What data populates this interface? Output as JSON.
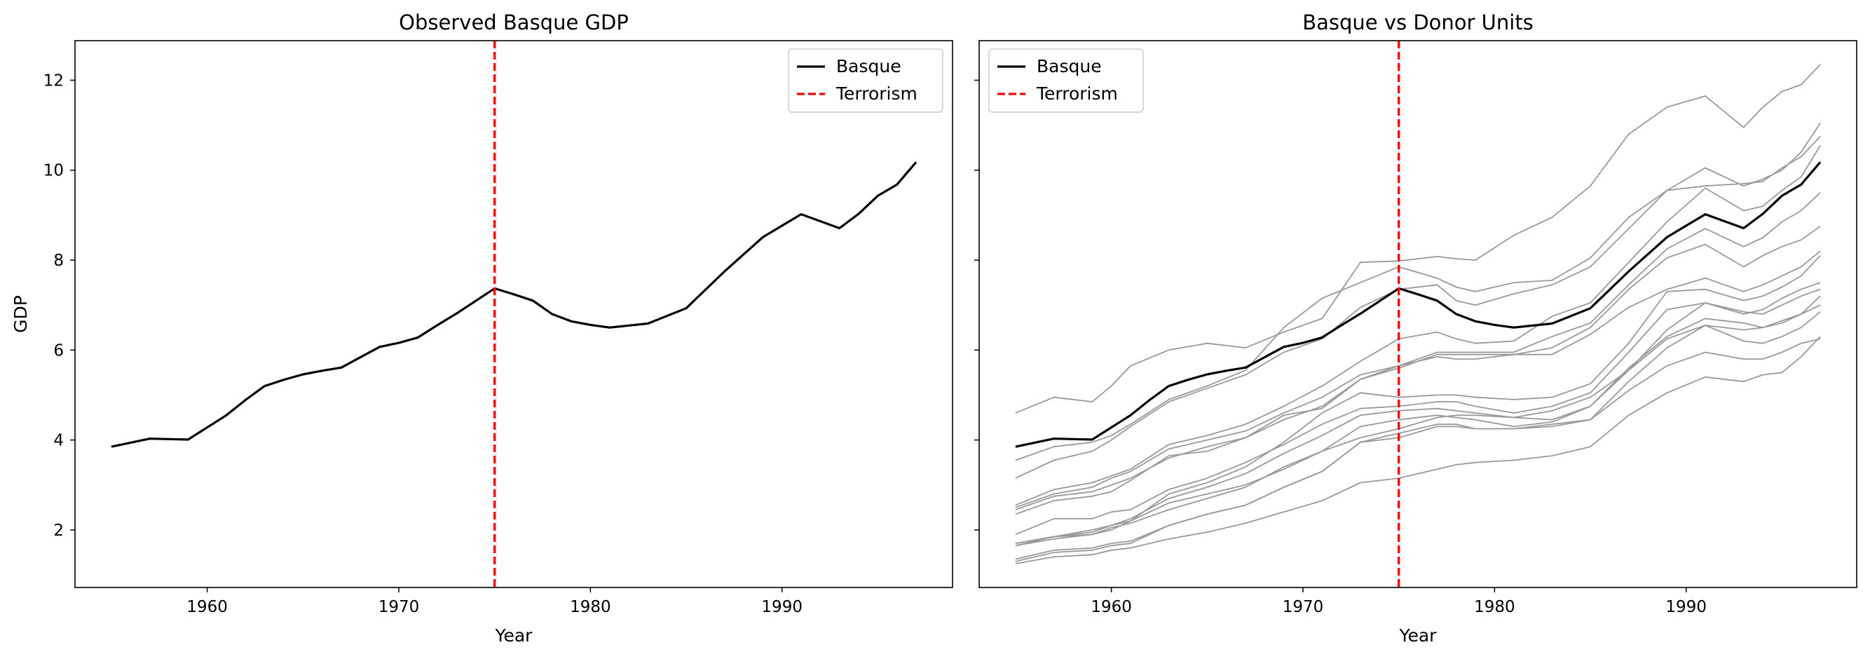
{
  "chart_data": [
    {
      "type": "line",
      "title": "Observed Basque GDP",
      "xlabel": "Year",
      "ylabel": "GDP",
      "xlim": [
        1953.1,
        1998.9
      ],
      "ylim": [
        0.72,
        12.88
      ],
      "xticks": [
        1960,
        1970,
        1980,
        1990
      ],
      "yticks": [
        2,
        4,
        6,
        8,
        10,
        12
      ],
      "x_tick_labels": [
        "1960",
        "1970",
        "1980",
        "1990"
      ],
      "y_tick_labels": [
        "2",
        "4",
        "6",
        "8",
        "10",
        "12"
      ],
      "vline": {
        "x": 1975,
        "label": "Terrorism",
        "color": "#ff0000",
        "style": "dashed"
      },
      "legend": {
        "placement": "upper right",
        "entries": [
          "Basque",
          "Terrorism"
        ]
      },
      "grid": false,
      "series": [
        {
          "name": "Basque",
          "color": "#000000",
          "x": [
            1955,
            1957,
            1959,
            1961,
            1962,
            1963,
            1964,
            1965,
            1966,
            1967,
            1969,
            1970,
            1971,
            1972,
            1973,
            1975,
            1976,
            1977,
            1978,
            1979,
            1980,
            1981,
            1983,
            1985,
            1987,
            1989,
            1991,
            1993,
            1994,
            1995,
            1996,
            1997
          ],
          "y": [
            3.85,
            4.03,
            4.01,
            4.55,
            4.89,
            5.2,
            5.34,
            5.46,
            5.54,
            5.61,
            6.07,
            6.16,
            6.28,
            6.55,
            6.81,
            7.37,
            7.24,
            7.1,
            6.8,
            6.64,
            6.56,
            6.5,
            6.59,
            6.93,
            7.75,
            8.51,
            9.02,
            8.71,
            9.03,
            9.43,
            9.68,
            10.18
          ]
        }
      ]
    },
    {
      "type": "line",
      "title": "Basque vs Donor Units",
      "xlabel": "Year",
      "ylabel": "",
      "xlim": [
        1953.1,
        1998.9
      ],
      "ylim": [
        0.72,
        12.88
      ],
      "xticks": [
        1960,
        1970,
        1980,
        1990
      ],
      "x_tick_labels": [
        "1960",
        "1970",
        "1980",
        "1990"
      ],
      "sharey": true,
      "vline": {
        "x": 1975,
        "label": "Terrorism",
        "color": "#ff0000",
        "style": "dashed"
      },
      "legend": {
        "placement": "upper left",
        "entries": [
          "Basque",
          "Terrorism"
        ]
      },
      "grid": false,
      "donor_color": "#999999",
      "x": [
        1955,
        1957,
        1959,
        1960,
        1961,
        1963,
        1965,
        1967,
        1969,
        1971,
        1973,
        1975,
        1977,
        1978,
        1979,
        1981,
        1983,
        1985,
        1987,
        1989,
        1991,
        1993,
        1994,
        1995,
        1996,
        1997
      ],
      "series": [
        {
          "name": "Basque",
          "color": "#000000",
          "x": [
            1955,
            1957,
            1959,
            1961,
            1962,
            1963,
            1964,
            1965,
            1966,
            1967,
            1969,
            1970,
            1971,
            1972,
            1973,
            1975,
            1976,
            1977,
            1978,
            1979,
            1980,
            1981,
            1983,
            1985,
            1987,
            1989,
            1991,
            1993,
            1994,
            1995,
            1996,
            1997
          ],
          "y": [
            3.85,
            4.03,
            4.01,
            4.55,
            4.89,
            5.2,
            5.34,
            5.46,
            5.54,
            5.61,
            6.07,
            6.16,
            6.28,
            6.55,
            6.81,
            7.37,
            7.24,
            7.1,
            6.8,
            6.64,
            6.56,
            6.5,
            6.59,
            6.93,
            7.75,
            8.51,
            9.02,
            8.71,
            9.03,
            9.43,
            9.68,
            10.18
          ]
        },
        {
          "values": [
            4.6,
            4.95,
            4.85,
            5.2,
            5.65,
            6.0,
            6.15,
            6.05,
            6.4,
            6.7,
            7.95,
            7.98,
            8.08,
            8.03,
            8.0,
            8.55,
            8.95,
            9.65,
            10.8,
            11.4,
            11.65,
            10.95,
            11.4,
            11.75,
            11.9,
            12.35
          ]
        },
        {
          "values": [
            3.55,
            3.85,
            3.95,
            4.1,
            4.35,
            4.9,
            5.2,
            5.55,
            6.5,
            7.15,
            7.5,
            7.85,
            7.6,
            7.4,
            7.3,
            7.5,
            7.55,
            8.05,
            8.95,
            9.55,
            10.05,
            9.65,
            9.8,
            10.0,
            10.4,
            11.05
          ]
        },
        {
          "values": [
            3.15,
            3.55,
            3.75,
            4.0,
            4.3,
            4.85,
            5.15,
            5.45,
            5.95,
            6.25,
            6.95,
            7.35,
            7.45,
            7.1,
            7.0,
            7.25,
            7.45,
            7.85,
            8.7,
            9.55,
            9.65,
            9.7,
            9.75,
            10.05,
            10.3,
            10.75
          ]
        },
        {
          "values": [
            2.55,
            2.9,
            3.05,
            3.2,
            3.35,
            3.9,
            4.1,
            4.35,
            4.75,
            5.2,
            5.75,
            6.25,
            6.4,
            6.25,
            6.15,
            6.2,
            6.75,
            7.05,
            7.95,
            8.85,
            9.6,
            9.1,
            9.2,
            9.55,
            9.85,
            10.55
          ]
        },
        {
          "values": [
            2.5,
            2.8,
            2.95,
            3.15,
            3.3,
            3.8,
            4.0,
            4.2,
            4.6,
            4.95,
            5.45,
            5.65,
            5.95,
            5.95,
            5.95,
            5.95,
            6.3,
            6.6,
            7.45,
            8.25,
            8.7,
            8.3,
            8.5,
            8.85,
            9.1,
            9.5
          ]
        },
        {
          "values": [
            2.45,
            2.75,
            2.85,
            3.0,
            3.15,
            3.6,
            3.85,
            4.05,
            4.45,
            4.75,
            5.35,
            5.6,
            5.9,
            5.9,
            5.9,
            5.9,
            6.05,
            6.5,
            7.35,
            8.05,
            8.35,
            7.85,
            8.1,
            8.3,
            8.45,
            8.75
          ]
        },
        {
          "values": [
            2.35,
            2.65,
            2.75,
            2.85,
            3.1,
            3.65,
            3.75,
            4.05,
            4.55,
            4.7,
            5.35,
            5.65,
            5.85,
            5.8,
            5.8,
            5.9,
            5.9,
            6.35,
            6.95,
            7.35,
            7.6,
            7.3,
            7.45,
            7.65,
            7.85,
            8.2
          ]
        },
        {
          "values": [
            1.7,
            1.85,
            2.0,
            2.1,
            2.2,
            2.8,
            3.05,
            3.4,
            3.95,
            4.6,
            5.05,
            4.95,
            5.0,
            5.0,
            4.95,
            4.9,
            4.95,
            5.25,
            6.15,
            7.3,
            7.35,
            7.1,
            7.2,
            7.4,
            7.65,
            8.1
          ]
        },
        {
          "values": [
            1.9,
            2.25,
            2.25,
            2.4,
            2.45,
            2.9,
            3.15,
            3.5,
            3.9,
            4.35,
            4.7,
            4.75,
            4.85,
            4.85,
            4.75,
            4.6,
            4.75,
            5.05,
            5.95,
            6.9,
            7.05,
            6.8,
            6.9,
            7.15,
            7.35,
            7.5
          ]
        },
        {
          "values": [
            1.7,
            1.85,
            1.95,
            2.1,
            2.25,
            2.7,
            2.95,
            3.25,
            3.7,
            4.1,
            4.55,
            4.65,
            4.7,
            4.65,
            4.6,
            4.5,
            4.65,
            4.95,
            5.55,
            6.45,
            7.05,
            6.85,
            6.8,
            7.0,
            7.2,
            7.35
          ]
        },
        {
          "values": [
            1.65,
            1.8,
            1.9,
            2.05,
            2.15,
            2.45,
            2.7,
            2.95,
            3.4,
            3.75,
            4.05,
            4.25,
            4.5,
            4.55,
            4.55,
            4.5,
            4.45,
            4.75,
            5.55,
            6.25,
            6.55,
            6.45,
            6.5,
            6.6,
            6.8,
            7.0
          ]
        },
        {
          "values": [
            1.65,
            1.85,
            1.9,
            2.0,
            2.2,
            2.6,
            2.8,
            3.0,
            3.35,
            3.75,
            4.3,
            4.45,
            4.55,
            4.5,
            4.45,
            4.3,
            4.4,
            4.75,
            5.6,
            6.3,
            6.7,
            6.6,
            6.5,
            6.65,
            6.8,
            7.2
          ]
        },
        {
          "values": [
            1.35,
            1.55,
            1.6,
            1.7,
            1.75,
            2.1,
            2.35,
            2.55,
            2.95,
            3.3,
            3.95,
            4.15,
            4.35,
            4.35,
            4.25,
            4.25,
            4.35,
            4.45,
            5.3,
            6.05,
            6.55,
            6.2,
            6.15,
            6.3,
            6.5,
            6.85
          ]
        },
        {
          "values": [
            1.3,
            1.5,
            1.55,
            1.65,
            1.7,
            2.1,
            2.35,
            2.55,
            2.95,
            3.3,
            3.95,
            4.05,
            4.3,
            4.3,
            4.25,
            4.25,
            4.3,
            4.45,
            5.1,
            5.65,
            5.95,
            5.8,
            5.8,
            5.95,
            6.15,
            6.25
          ]
        },
        {
          "values": [
            1.25,
            1.4,
            1.45,
            1.55,
            1.6,
            1.8,
            1.95,
            2.15,
            2.4,
            2.65,
            3.05,
            3.15,
            3.35,
            3.45,
            3.5,
            3.55,
            3.65,
            3.85,
            4.55,
            5.05,
            5.4,
            5.3,
            5.45,
            5.5,
            5.85,
            6.3
          ]
        }
      ]
    }
  ]
}
